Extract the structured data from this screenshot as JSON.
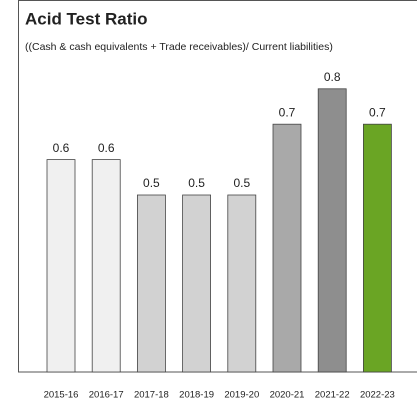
{
  "chart_data": {
    "type": "bar",
    "title": "Acid Test Ratio",
    "subtitle": "((Cash & cash equivalents + Trade receivables)/ Current liabilities)",
    "categories": [
      "2015-16",
      "2016-17",
      "2017-18",
      "2018-19",
      "2019-20",
      "2020-21",
      "2021-22",
      "2022-23"
    ],
    "values": [
      0.6,
      0.6,
      0.5,
      0.5,
      0.5,
      0.7,
      0.8,
      0.7
    ],
    "colors": [
      "#f0f0f0",
      "#f0f0f0",
      "#d2d2d2",
      "#d2d2d2",
      "#d2d2d2",
      "#a9a9a9",
      "#8e8e8e",
      "#6aa524"
    ]
  }
}
